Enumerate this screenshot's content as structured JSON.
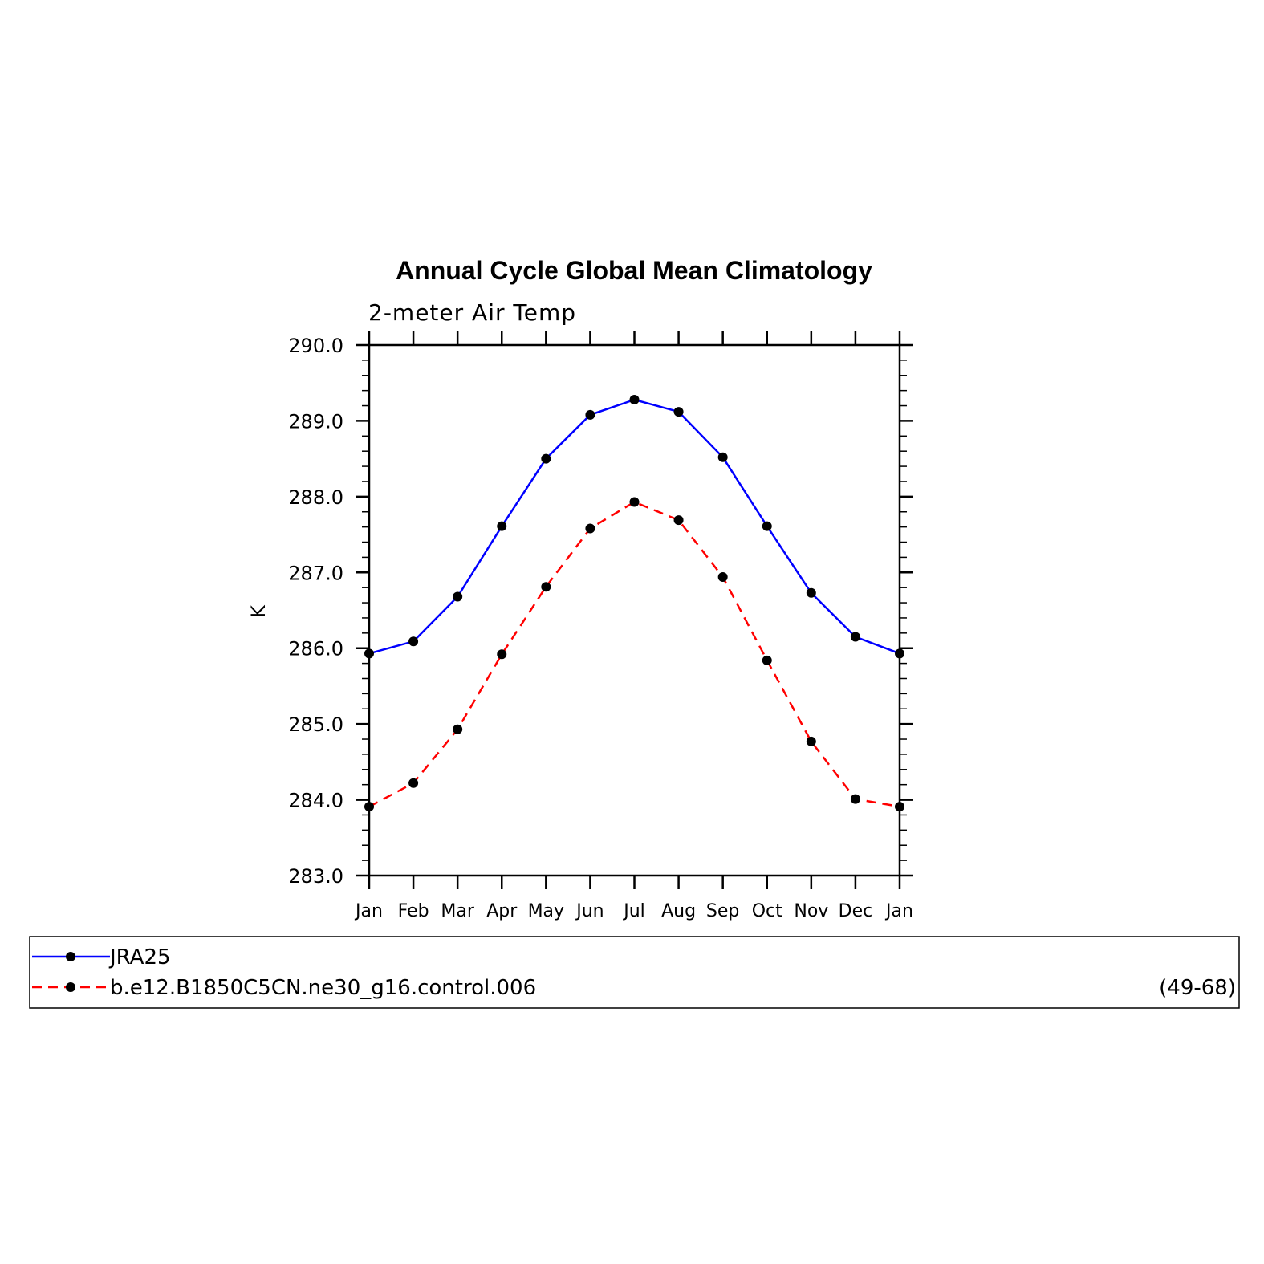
{
  "chart_data": {
    "type": "line",
    "title": "Annual Cycle Global Mean Climatology",
    "subtitle": "2-meter Air Temp",
    "ylabel": "K",
    "xlabel": "",
    "categories": [
      "Jan",
      "Feb",
      "Mar",
      "Apr",
      "May",
      "Jun",
      "Jul",
      "Aug",
      "Sep",
      "Oct",
      "Nov",
      "Dec",
      "Jan"
    ],
    "ylim": [
      283.0,
      290.0
    ],
    "yticks": [
      "283.0",
      "284.0",
      "285.0",
      "286.0",
      "287.0",
      "288.0",
      "289.0",
      "290.0"
    ],
    "series": [
      {
        "name": "JRA25",
        "color": "#0000ff",
        "dash": "solid",
        "values": [
          285.93,
          286.09,
          286.68,
          287.61,
          288.5,
          289.08,
          289.28,
          289.12,
          288.52,
          287.61,
          286.73,
          286.15,
          285.93
        ]
      },
      {
        "name": "b.e12.B1850C5CN.ne30_g16.control.006",
        "color": "#ff0000",
        "dash": "dashed",
        "values": [
          283.91,
          284.22,
          284.93,
          285.92,
          286.81,
          287.58,
          287.93,
          287.69,
          286.94,
          285.84,
          284.77,
          284.01,
          283.91
        ]
      }
    ],
    "legend_note": "(49-68)",
    "grid": false,
    "legend_placement": "bottom"
  }
}
